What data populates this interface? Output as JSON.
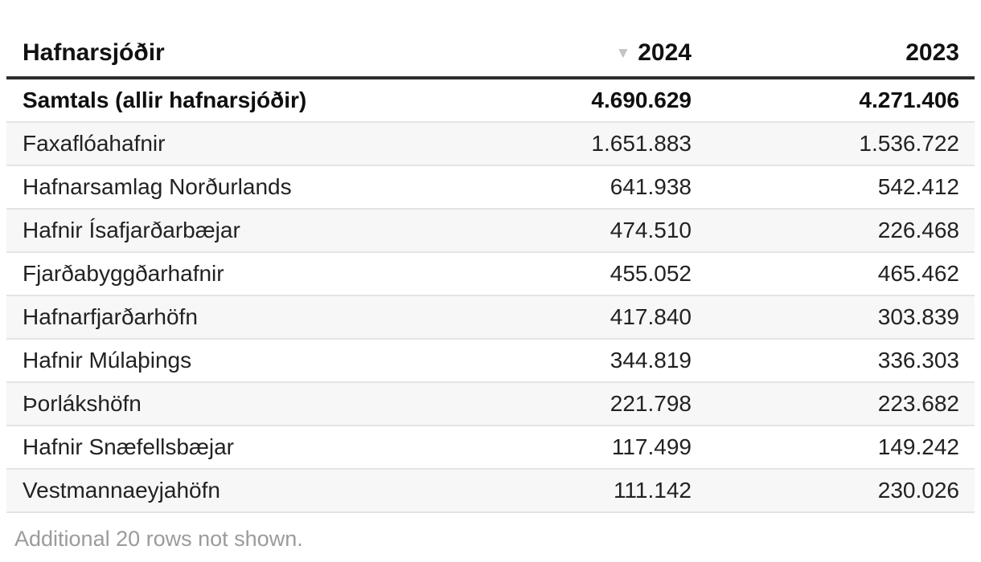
{
  "table": {
    "columns": [
      {
        "label": "Hafnarsjóðir"
      },
      {
        "label": "2024",
        "sorted": "desc"
      },
      {
        "label": "2023"
      }
    ],
    "sort_indicator": "▼",
    "total_row": {
      "name": "Samtals (allir hafnarsjóðir)",
      "y2024": "4.690.629",
      "y2023": "4.271.406"
    },
    "rows": [
      {
        "name": "Faxaflóahafnir",
        "y2024": "1.651.883",
        "y2023": "1.536.722"
      },
      {
        "name": "Hafnarsamlag Norðurlands",
        "y2024": "641.938",
        "y2023": "542.412"
      },
      {
        "name": "Hafnir Ísafjarðarbæjar",
        "y2024": "474.510",
        "y2023": "226.468"
      },
      {
        "name": "Fjarðabyggðarhafnir",
        "y2024": "455.052",
        "y2023": "465.462"
      },
      {
        "name": "Hafnarfjarðarhöfn",
        "y2024": "417.840",
        "y2023": "303.839"
      },
      {
        "name": "Hafnir Múlaþings",
        "y2024": "344.819",
        "y2023": "336.303"
      },
      {
        "name": "Þorlákshöfn",
        "y2024": "221.798",
        "y2023": "223.682"
      },
      {
        "name": "Hafnir Snæfellsbæjar",
        "y2024": "117.499",
        "y2023": "149.242"
      },
      {
        "name": "Vestmannaeyjahöfn",
        "y2024": "111.142",
        "y2023": "230.026"
      }
    ]
  },
  "footer": {
    "note": "Additional 20 rows not shown."
  },
  "colors": {
    "header_rule": "#2d2d2d",
    "row_alt_bg": "#f7f7f7",
    "row_divider": "#e4e4e4",
    "text": "#222222",
    "muted_text": "#9b9b9b",
    "sort_icon": "#c4c4c4"
  }
}
